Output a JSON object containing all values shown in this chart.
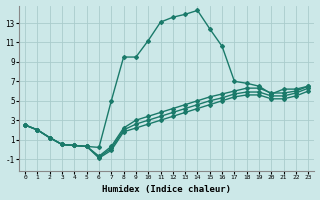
{
  "bg_color": "#cce8e8",
  "grid_color": "#aacccc",
  "line_color": "#1a7a6a",
  "xlabel": "Humidex (Indice chaleur)",
  "xlabel_fontsize": 6.5,
  "yticks": [
    -1,
    1,
    3,
    5,
    7,
    9,
    11,
    13
  ],
  "xticks": [
    0,
    1,
    2,
    3,
    4,
    5,
    6,
    7,
    8,
    9,
    10,
    11,
    12,
    13,
    14,
    15,
    16,
    17,
    18,
    19,
    20,
    21,
    22,
    23
  ],
  "xlim": [
    -0.5,
    23.5
  ],
  "ylim": [
    -2.2,
    14.8
  ],
  "lines": [
    {
      "x": [
        0,
        1,
        2,
        3,
        4,
        5,
        6,
        7,
        8,
        9,
        10,
        11,
        12,
        13,
        14,
        15,
        16,
        17,
        18,
        19,
        20,
        21,
        22,
        23
      ],
      "y": [
        2.5,
        2.0,
        1.2,
        0.5,
        0.4,
        0.3,
        0.2,
        5.0,
        9.5,
        9.5,
        11.2,
        13.1,
        13.6,
        13.9,
        14.3,
        12.4,
        10.6,
        7.0,
        6.8,
        6.5,
        5.7,
        6.2,
        6.2,
        6.5
      ],
      "marker": "D",
      "markersize": 2.0,
      "linewidth": 1.0
    },
    {
      "x": [
        0,
        1,
        2,
        3,
        4,
        5,
        6,
        7,
        8,
        9,
        10,
        11,
        12,
        13,
        14,
        15,
        16,
        17,
        18,
        19,
        20,
        21,
        22,
        23
      ],
      "y": [
        2.5,
        2.0,
        1.2,
        0.5,
        0.4,
        0.3,
        -0.7,
        0.3,
        2.2,
        3.0,
        3.4,
        3.8,
        4.2,
        4.6,
        5.0,
        5.4,
        5.7,
        6.0,
        6.3,
        6.3,
        5.8,
        5.8,
        6.0,
        6.5
      ],
      "marker": "D",
      "markersize": 2.0,
      "linewidth": 1.0
    },
    {
      "x": [
        0,
        1,
        2,
        3,
        4,
        5,
        6,
        7,
        8,
        9,
        10,
        11,
        12,
        13,
        14,
        15,
        16,
        17,
        18,
        19,
        20,
        21,
        22,
        23
      ],
      "y": [
        2.5,
        2.0,
        1.2,
        0.5,
        0.4,
        0.3,
        -0.8,
        0.1,
        2.0,
        2.6,
        3.0,
        3.4,
        3.8,
        4.2,
        4.6,
        5.0,
        5.3,
        5.7,
        5.9,
        5.9,
        5.5,
        5.5,
        5.8,
        6.3
      ],
      "marker": "D",
      "markersize": 2.0,
      "linewidth": 1.0
    },
    {
      "x": [
        0,
        1,
        2,
        3,
        4,
        5,
        6,
        7,
        8,
        9,
        10,
        11,
        12,
        13,
        14,
        15,
        16,
        17,
        18,
        19,
        20,
        21,
        22,
        23
      ],
      "y": [
        2.5,
        2.0,
        1.2,
        0.5,
        0.4,
        0.3,
        -0.9,
        -0.1,
        1.8,
        2.2,
        2.6,
        3.0,
        3.4,
        3.8,
        4.2,
        4.6,
        5.0,
        5.4,
        5.6,
        5.6,
        5.2,
        5.2,
        5.5,
        6.0
      ],
      "marker": "D",
      "markersize": 2.0,
      "linewidth": 1.0
    }
  ]
}
